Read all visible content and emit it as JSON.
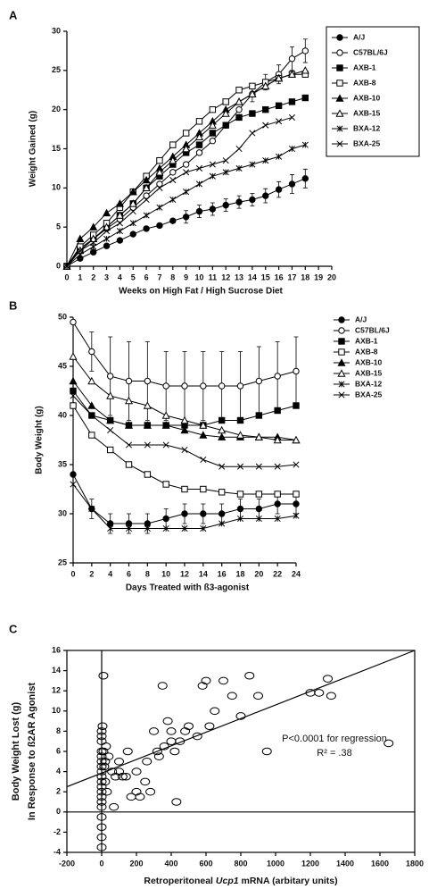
{
  "chart_data": [
    {
      "type": "line",
      "panel": "A",
      "x_label": "Weeks on High Fat / High Sucrose Diet",
      "y_label": "Weight Gained (g)",
      "x": [
        0,
        1,
        2,
        3,
        4,
        5,
        6,
        7,
        8,
        9,
        10,
        11,
        12,
        13,
        14,
        15,
        16,
        17,
        18
      ],
      "xlim": [
        0,
        20
      ],
      "xticks": [
        0,
        1,
        2,
        3,
        4,
        5,
        6,
        7,
        8,
        9,
        10,
        11,
        12,
        13,
        14,
        15,
        16,
        17,
        18,
        19,
        20
      ],
      "ylim": [
        0,
        30
      ],
      "yticks": [
        0,
        5,
        10,
        15,
        20,
        25,
        30
      ],
      "legend_box": true,
      "series": [
        {
          "name": "A/J",
          "marker": "circle-filled",
          "color": "#000",
          "values": [
            0,
            1,
            1.8,
            2.6,
            3.3,
            4.1,
            4.8,
            5.2,
            5.8,
            6.3,
            7,
            7.3,
            7.8,
            8.2,
            8.5,
            9,
            9.8,
            10.5,
            11.2
          ],
          "errors": [
            0,
            0,
            0,
            0,
            0,
            0,
            0,
            0,
            0,
            0.8,
            0.8,
            0.8,
            0.8,
            0.8,
            0.8,
            0.9,
            1,
            1.2,
            1.2
          ]
        },
        {
          "name": "C57BL/6J",
          "marker": "circle-open",
          "color": "#000",
          "values": [
            0,
            2.3,
            3.5,
            4.8,
            6,
            7.5,
            9,
            10.5,
            12,
            13,
            14.5,
            16,
            18,
            20,
            22,
            23.5,
            24.5,
            26.5,
            27.5
          ],
          "errors": [
            0,
            0,
            0,
            0,
            0,
            0,
            0,
            0,
            0,
            0,
            0,
            0,
            0,
            0,
            1,
            1,
            1.2,
            1.5,
            1.5
          ]
        },
        {
          "name": "AXB-1",
          "marker": "square-filled",
          "color": "#000",
          "values": [
            0,
            2,
            3.5,
            5,
            6.5,
            8,
            10,
            11.5,
            13,
            14.5,
            15.5,
            17,
            18,
            19,
            19.5,
            20,
            20.5,
            21,
            21.5
          ]
        },
        {
          "name": "AXB-8",
          "marker": "square-open",
          "color": "#000",
          "values": [
            0,
            2.5,
            4,
            5.5,
            7.5,
            9.5,
            11.5,
            13.5,
            15.5,
            17,
            18.5,
            20,
            21,
            22.5,
            23,
            23.5,
            24,
            24.5,
            24.5
          ]
        },
        {
          "name": "AXB-10",
          "marker": "triangle-filled",
          "color": "#000",
          "values": [
            0,
            3.5,
            5,
            6.8,
            8,
            9.5,
            11,
            12.5,
            14,
            15.5,
            17,
            18.5,
            20,
            21,
            22,
            23,
            24,
            null,
            null
          ]
        },
        {
          "name": "AXB-15",
          "marker": "triangle-open",
          "color": "#000",
          "values": [
            0,
            2,
            3.5,
            5,
            6.5,
            8,
            10,
            12,
            13.5,
            15,
            16.5,
            18,
            19.5,
            21,
            22,
            23,
            24,
            24.5,
            25
          ]
        },
        {
          "name": "BXA-12",
          "marker": "star",
          "color": "#000",
          "values": [
            0,
            1.5,
            2.5,
            3.5,
            4.5,
            5.5,
            6.5,
            7.5,
            8.5,
            9.5,
            10.5,
            11.5,
            12,
            12.5,
            13,
            13.5,
            14,
            15,
            15.5
          ]
        },
        {
          "name": "BXA-25",
          "marker": "x",
          "color": "#000",
          "values": [
            0,
            2,
            3,
            4.5,
            5.5,
            7,
            8.5,
            10,
            11,
            12,
            12.5,
            13,
            13.5,
            15,
            17,
            18,
            18.5,
            19,
            null
          ]
        }
      ]
    },
    {
      "type": "line",
      "panel": "B",
      "x_label": "Days Treated with ß3-agonist",
      "y_label": "Body Weight (g)",
      "x": [
        0,
        2,
        4,
        6,
        8,
        10,
        12,
        14,
        16,
        18,
        20,
        22,
        24
      ],
      "xlim": [
        0,
        24
      ],
      "xticks": [
        0,
        2,
        4,
        6,
        8,
        10,
        12,
        14,
        16,
        18,
        20,
        22,
        24
      ],
      "ylim": [
        25,
        50
      ],
      "yticks": [
        25,
        30,
        35,
        40,
        45,
        50
      ],
      "legend_box": false,
      "series": [
        {
          "name": "A/J",
          "marker": "circle-filled",
          "color": "#000",
          "values": [
            34,
            30.5,
            29,
            29,
            29,
            29.5,
            30,
            30,
            30,
            30.5,
            30.5,
            31,
            31
          ],
          "errors": [
            0,
            1,
            1,
            1,
            1,
            1,
            1,
            1,
            1,
            1,
            1,
            1,
            1
          ]
        },
        {
          "name": "C57BL/6J",
          "marker": "circle-open",
          "color": "#000",
          "values": [
            49.5,
            46.5,
            44,
            43.5,
            43.5,
            43,
            43,
            43,
            43,
            43,
            43.5,
            44,
            44.5
          ],
          "errors": [
            0,
            2,
            4,
            4,
            4,
            3.5,
            3.5,
            3.5,
            3.5,
            3.5,
            3.5,
            3.5,
            3.5
          ]
        },
        {
          "name": "AXB-1",
          "marker": "square-filled",
          "color": "#000",
          "values": [
            42.5,
            40,
            39.5,
            39,
            39,
            39,
            39,
            39,
            39.5,
            39.5,
            40,
            40.5,
            41
          ]
        },
        {
          "name": "AXB-8",
          "marker": "square-open",
          "color": "#000",
          "values": [
            41,
            38,
            36.5,
            35,
            34,
            33,
            32.5,
            32.5,
            32.2,
            32,
            32,
            32,
            32
          ]
        },
        {
          "name": "AXB-10",
          "marker": "triangle-filled",
          "color": "#000",
          "values": [
            43.5,
            41,
            39.5,
            39,
            39,
            39,
            38.5,
            38,
            37.8,
            37.8,
            37.8,
            37.8,
            37.5
          ]
        },
        {
          "name": "AXB-15",
          "marker": "triangle-open",
          "color": "#000",
          "values": [
            46,
            43.5,
            42,
            41.5,
            41,
            40,
            39.5,
            39,
            38.5,
            38,
            37.8,
            37.5,
            37.5
          ]
        },
        {
          "name": "BXA-12",
          "marker": "star",
          "color": "#000",
          "values": [
            33,
            30.5,
            28.5,
            28.5,
            28.5,
            28.5,
            28.5,
            28.5,
            29,
            29.5,
            29.5,
            29.5,
            29.8
          ]
        },
        {
          "name": "BXA-25",
          "marker": "x",
          "color": "#000",
          "values": [
            42,
            40,
            38.5,
            37,
            37,
            37,
            36.5,
            35.5,
            34.8,
            34.8,
            34.8,
            34.8,
            35
          ]
        }
      ]
    },
    {
      "type": "scatter",
      "panel": "C",
      "x_label": [
        "Retroperitoneal ",
        "Ucp1",
        " mRNA (arbitary units)"
      ],
      "y_label": [
        "Body Weight Lost (g)",
        "In Response to ß2AR Agonist"
      ],
      "annotations": [
        "P<0.0001 for regression",
        "R² = .38"
      ],
      "xlim": [
        -200,
        1800
      ],
      "xticks": [
        -200,
        0,
        200,
        400,
        600,
        800,
        1000,
        1200,
        1400,
        1600,
        1800
      ],
      "ylim": [
        -4,
        16
      ],
      "yticks": [
        -4,
        -2,
        0,
        2,
        4,
        6,
        8,
        10,
        12,
        14,
        16
      ],
      "frame": true,
      "zero_lines": true,
      "color": "#000",
      "regression_line": {
        "x": [
          -200,
          1800
        ],
        "y": [
          2.5,
          16
        ]
      },
      "x": [
        0,
        0,
        0,
        0,
        0,
        0,
        0,
        0,
        0,
        0,
        0,
        0,
        0,
        0,
        0,
        0,
        0,
        0,
        0,
        5,
        10,
        10,
        15,
        20,
        20,
        25,
        30,
        40,
        60,
        70,
        80,
        100,
        100,
        120,
        140,
        150,
        170,
        200,
        200,
        220,
        250,
        260,
        280,
        300,
        320,
        330,
        350,
        360,
        380,
        400,
        400,
        420,
        430,
        450,
        480,
        500,
        550,
        580,
        600,
        620,
        650,
        700,
        750,
        800,
        850,
        900,
        950,
        1200,
        1250,
        1300,
        1320,
        1650
      ],
      "y": [
        -3.5,
        -2.5,
        -1.5,
        -0.5,
        0.5,
        1,
        1.5,
        2,
        2.5,
        3,
        3.5,
        4,
        4.5,
        5,
        5.5,
        6,
        7,
        7.5,
        8,
        8.5,
        13.5,
        6,
        4.5,
        5,
        3,
        6.5,
        2,
        5.5,
        4,
        0.5,
        3.5,
        4,
        5,
        3.5,
        3.5,
        6,
        1.5,
        2,
        4,
        1.5,
        3,
        5,
        2,
        8,
        6,
        5.5,
        12.5,
        6.5,
        9,
        7,
        8,
        6,
        1,
        7,
        8,
        8.5,
        7.5,
        12.5,
        13,
        8.5,
        10,
        13,
        11.5,
        9.5,
        13.5,
        11.5,
        6,
        11.8,
        11.8,
        13.2,
        11.5,
        6.8
      ]
    }
  ]
}
